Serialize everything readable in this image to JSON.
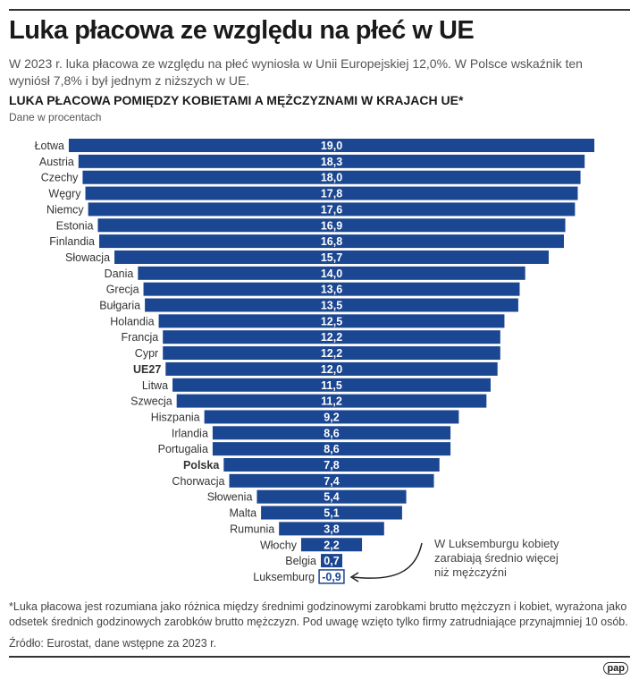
{
  "header": {
    "title": "Luka płacowa ze względu na płeć w UE",
    "subtitle": "W 2023 r. luka płacowa ze względu na płeć wyniosła w Unii Europejskiej 12,0%. W Polsce wskaźnik ten wyniósł 7,8% i był jednym z niższych w UE."
  },
  "chart_data": {
    "type": "bar",
    "orientation": "horizontal",
    "title": "LUKA PŁACOWA POMIĘDZY KOBIETAMI A MĘŻCZYZNAMI W KRAJACH UE*",
    "subtitle": "Dane w procentach",
    "categories": [
      "Łotwa",
      "Austria",
      "Czechy",
      "Węgry",
      "Niemcy",
      "Estonia",
      "Finlandia",
      "Słowacja",
      "Dania",
      "Grecja",
      "Bułgaria",
      "Holandia",
      "Francja",
      "Cypr",
      "UE27",
      "Litwa",
      "Szwecja",
      "Hiszpania",
      "Irlandia",
      "Portugalia",
      "Polska",
      "Chorwacja",
      "Słowenia",
      "Malta",
      "Rumunia",
      "Włochy",
      "Belgia",
      "Luksemburg"
    ],
    "values": [
      19.0,
      18.3,
      18.0,
      17.8,
      17.6,
      16.9,
      16.8,
      15.7,
      14.0,
      13.6,
      13.5,
      12.5,
      12.2,
      12.2,
      12.0,
      11.5,
      11.2,
      9.2,
      8.6,
      8.6,
      7.8,
      7.4,
      5.4,
      5.1,
      3.8,
      2.2,
      0.7,
      -0.9
    ],
    "labels": [
      "19,0",
      "18,3",
      "18,0",
      "17,8",
      "17,6",
      "16,9",
      "16,8",
      "15,7",
      "14,0",
      "13,6",
      "13,5",
      "12,5",
      "12,2",
      "12,2",
      "12,0",
      "11,5",
      "11,2",
      "9,2",
      "8,6",
      "8,6",
      "7,8",
      "7,4",
      "5,4",
      "5,1",
      "3,8",
      "2,2",
      "0,7",
      "-0,9"
    ],
    "highlighted": [
      "UE27",
      "Polska"
    ],
    "bar_color": "#1b4691",
    "negative_style": "outlined",
    "annotation": "W Luksemburgu kobiety zarabiają średnio więcej niż mężczyźni"
  },
  "footer": {
    "footnote": "*Luka płacowa jest rozumiana jako różnica między średnimi godzinowymi zarobkami brutto mężczyzn i kobiet, wyrażona jako odsetek średnich godzinowych zarobków brutto mężczyzn. Pod uwagę wzięto tylko firmy zatrudniające przynajmniej 10 osób.",
    "source": "Źródło: Eurostat, dane wstępne za 2023 r.",
    "logo": "pap"
  }
}
